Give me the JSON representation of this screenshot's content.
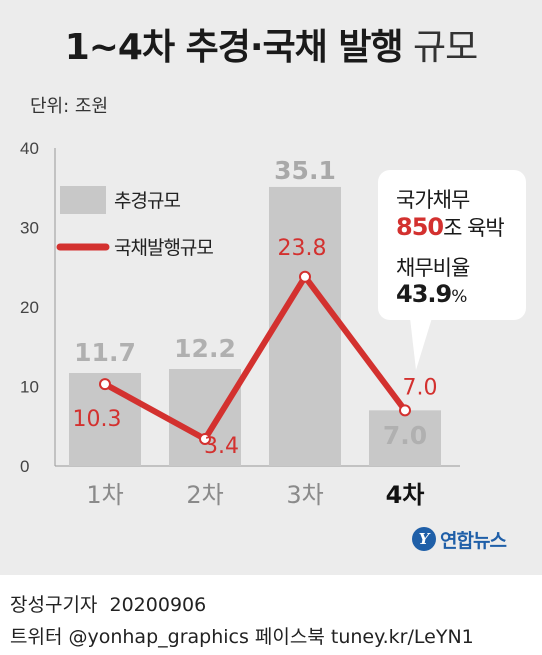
{
  "title": {
    "bold": "1~4차 추경·국채 발행",
    "light": "규모"
  },
  "unit_label": "단위: 조원",
  "chart_data": {
    "type": "bar",
    "categories": [
      "1차",
      "2차",
      "3차",
      "4차"
    ],
    "highlight_category": "4차",
    "series": [
      {
        "name": "추경규모",
        "type": "bar",
        "color": "#c8c8c8",
        "values": [
          11.7,
          12.2,
          35.1,
          7.0
        ]
      },
      {
        "name": "국채발행규모",
        "type": "line",
        "color": "#d3312f",
        "values": [
          10.3,
          3.4,
          23.8,
          7.0
        ]
      }
    ],
    "ylim": [
      0,
      40
    ],
    "yticks": [
      0,
      10,
      20,
      30,
      40
    ],
    "grid": false,
    "legend_position": "top-left"
  },
  "value_labels": {
    "bars": [
      "11.7",
      "12.2",
      "35.1",
      "7.0"
    ],
    "line": [
      "10.3",
      "3.4",
      "23.8",
      "7.0"
    ]
  },
  "callout": {
    "line1": "국가채무",
    "amount": "850",
    "amount_suffix": "조 육박",
    "line3": "채무비율",
    "ratio": "43.9",
    "ratio_unit": "%"
  },
  "logo": {
    "mark": "Y",
    "text": "연합뉴스"
  },
  "credit": {
    "author": "장성구기자",
    "date": "20200906",
    "line2": "트위터 @yonhap_graphics  페이스북 tuney.kr/LeYN1"
  }
}
